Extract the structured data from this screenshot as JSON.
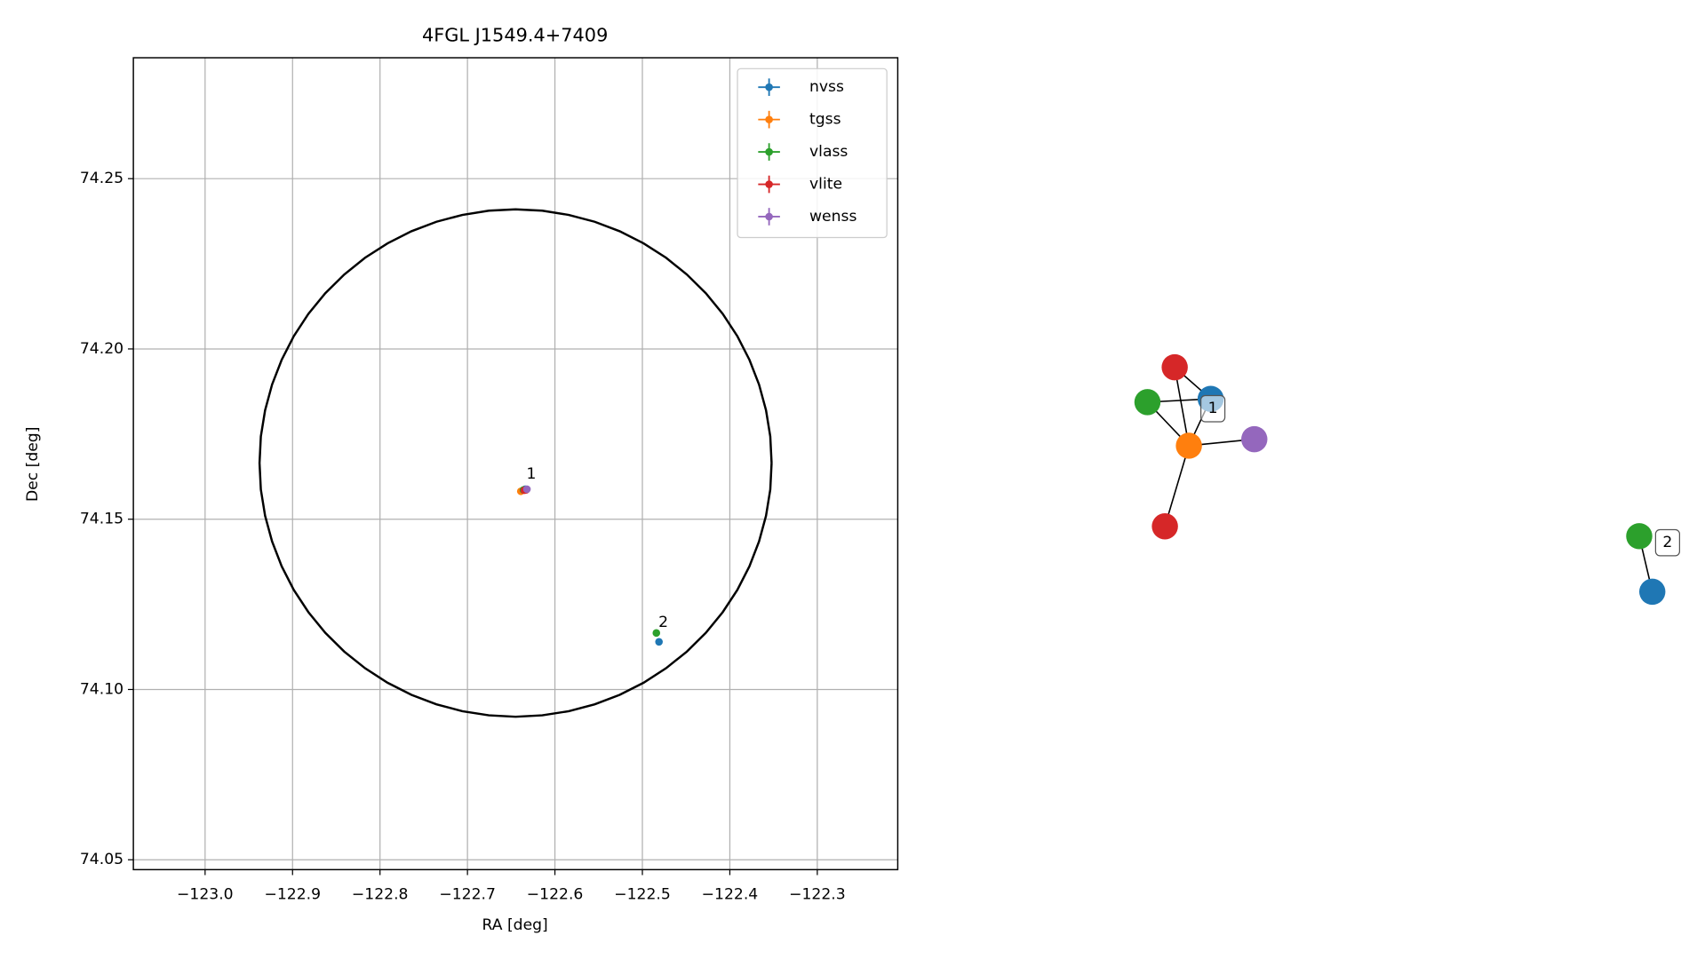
{
  "chart_data": [
    {
      "type": "scatter",
      "title": "4FGL J1549.4+7409",
      "xlabel": "RA [deg]",
      "ylabel": "Dec [deg]",
      "xlim": [
        -123.082,
        -122.208
      ],
      "ylim": [
        74.0471,
        74.2855
      ],
      "xticks": [
        {
          "value": -123.0,
          "label": "−123.0"
        },
        {
          "value": -122.9,
          "label": "−122.9"
        },
        {
          "value": -122.8,
          "label": "−122.8"
        },
        {
          "value": -122.7,
          "label": "−122.7"
        },
        {
          "value": -122.6,
          "label": "−122.6"
        },
        {
          "value": -122.5,
          "label": "−122.5"
        },
        {
          "value": -122.4,
          "label": "−122.4"
        },
        {
          "value": -122.3,
          "label": "−122.3"
        }
      ],
      "yticks": [
        74.05,
        {
          "value": 74.1,
          "label": "74.10"
        },
        74.15,
        {
          "value": 74.2,
          "label": "74.20"
        },
        74.25
      ],
      "grid": true,
      "legend": "upper right",
      "series": [
        {
          "name": "nvss",
          "color": "#1f77b4",
          "x": [
            -122.634,
            -122.481
          ],
          "values": [
            74.1588,
            74.114
          ],
          "xerr": [
            0.002,
            0.002
          ],
          "yerr": [
            0.0005,
            0.001
          ]
        },
        {
          "name": "tgss",
          "color": "#ff7f0e",
          "x": [
            -122.639
          ],
          "values": [
            74.1582
          ],
          "xerr": [
            0.003
          ],
          "yerr": [
            0.0008
          ]
        },
        {
          "name": "vlass",
          "color": "#2ca02c",
          "x": [
            -122.636,
            -122.484
          ],
          "values": [
            74.1586,
            74.1166
          ],
          "xerr": [
            0.0005,
            0.0005
          ],
          "yerr": [
            0.0002,
            0.0002
          ]
        },
        {
          "name": "vlite",
          "color": "#d62728",
          "x": [
            -122.635,
            -122.633
          ],
          "values": [
            74.1585,
            74.1586
          ],
          "xerr": [
            0.002,
            0.002
          ],
          "yerr": [
            0.0005,
            0.0005
          ]
        },
        {
          "name": "wenss",
          "color": "#9467bd",
          "x": [
            -122.632
          ],
          "values": [
            74.1588
          ],
          "xerr": [
            0.003
          ],
          "yerr": [
            0.0009
          ]
        }
      ],
      "circle": {
        "ra": -122.645,
        "dec": 74.1665,
        "ra_radius": 0.2928,
        "dec_radius": 0.0745
      },
      "annotations": [
        {
          "text": "1",
          "x": -122.627,
          "y": 74.1632
        },
        {
          "text": "2",
          "x": -122.476,
          "y": 74.1197
        }
      ]
    },
    {
      "type": "network",
      "nodes": [
        {
          "color": "#1f77b4"
        },
        {
          "color": "#d62728"
        },
        {
          "color": "#2ca02c"
        },
        {
          "color": "#ff7f0e"
        },
        {
          "color": "#9467bd"
        },
        {
          "color": "#d62728"
        },
        {
          "color": "#2ca02c"
        },
        {
          "color": "#1f77b4"
        }
      ],
      "edges": [
        [
          1,
          0
        ],
        [
          1,
          3
        ],
        [
          2,
          0
        ],
        [
          2,
          3
        ],
        [
          0,
          3
        ],
        [
          3,
          4
        ],
        [
          3,
          5
        ],
        [
          6,
          7
        ]
      ],
      "labels": [
        "1",
        "2"
      ]
    }
  ]
}
